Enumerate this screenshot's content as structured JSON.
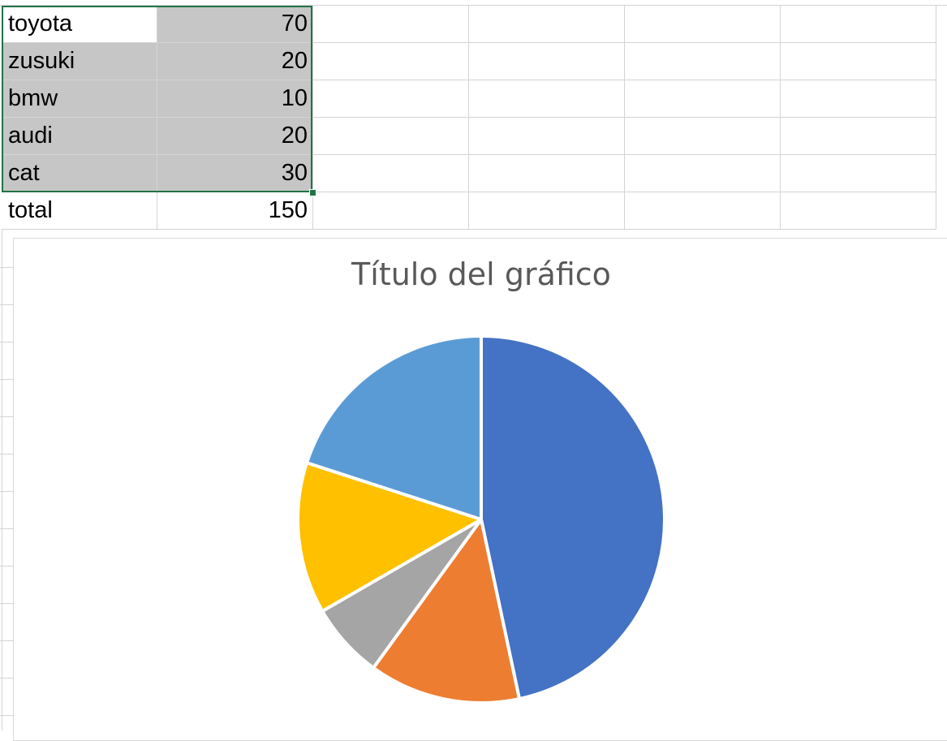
{
  "sheet": {
    "rows": [
      {
        "label": "toyota",
        "value": "70"
      },
      {
        "label": "zusuki",
        "value": "20"
      },
      {
        "label": "bmw",
        "value": "10"
      },
      {
        "label": "audi",
        "value": "20"
      },
      {
        "label": "cat",
        "value": "30"
      },
      {
        "label": "total",
        "value": "150"
      }
    ]
  },
  "chart_data": {
    "type": "pie",
    "title": "Título del gráfico",
    "categories": [
      "toyota",
      "zusuki",
      "bmw",
      "audi",
      "cat"
    ],
    "values": [
      70,
      20,
      10,
      20,
      30
    ],
    "colors": [
      "#4472c4",
      "#ed7d31",
      "#a5a5a5",
      "#ffc000",
      "#5b9bd5"
    ],
    "legend": "none"
  }
}
